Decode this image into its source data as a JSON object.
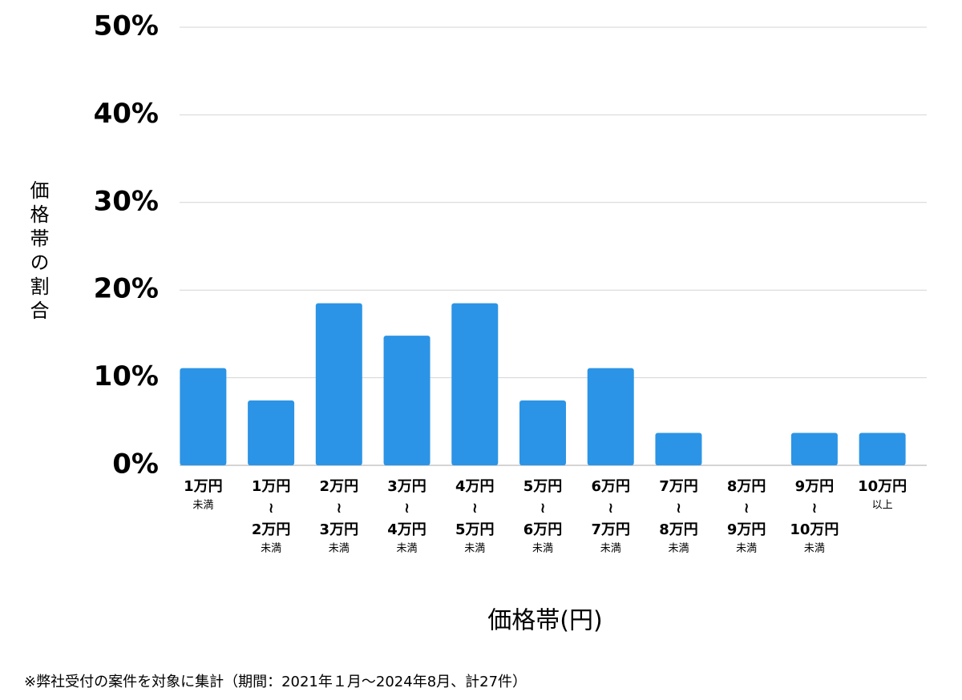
{
  "chart_data": {
    "type": "bar",
    "y_label": "価格帯の割合",
    "x_label": "価格帯(円)",
    "footnote": "※弊社受付の案件を対象に集計（期間：2021年１月〜2024年8月、計27件）",
    "categories": [
      [
        "1万円",
        "未満"
      ],
      [
        "1万円",
        "≀",
        "2万円",
        "未満"
      ],
      [
        "2万円",
        "≀",
        "3万円",
        "未満"
      ],
      [
        "3万円",
        "≀",
        "4万円",
        "未満"
      ],
      [
        "4万円",
        "≀",
        "5万円",
        "未満"
      ],
      [
        "5万円",
        "≀",
        "6万円",
        "未満"
      ],
      [
        "6万円",
        "≀",
        "7万円",
        "未満"
      ],
      [
        "7万円",
        "≀",
        "8万円",
        "未満"
      ],
      [
        "8万円",
        "≀",
        "9万円",
        "未満"
      ],
      [
        "9万円",
        "≀",
        "10万円",
        "未満"
      ],
      [
        "10万円",
        "以上"
      ]
    ],
    "values": [
      11.1,
      7.4,
      18.5,
      14.8,
      18.5,
      7.4,
      11.1,
      3.7,
      0,
      3.7,
      3.7
    ],
    "color": "#2b94e6",
    "ylim": [
      0,
      50
    ],
    "yticks": [
      {
        "value": 0,
        "label": "0%"
      },
      {
        "value": 10,
        "label": "10%"
      },
      {
        "value": 20,
        "label": "20%"
      },
      {
        "value": 30,
        "label": "30%"
      },
      {
        "value": 40,
        "label": "40%"
      },
      {
        "value": 50,
        "label": "50%"
      }
    ],
    "grid": true
  }
}
